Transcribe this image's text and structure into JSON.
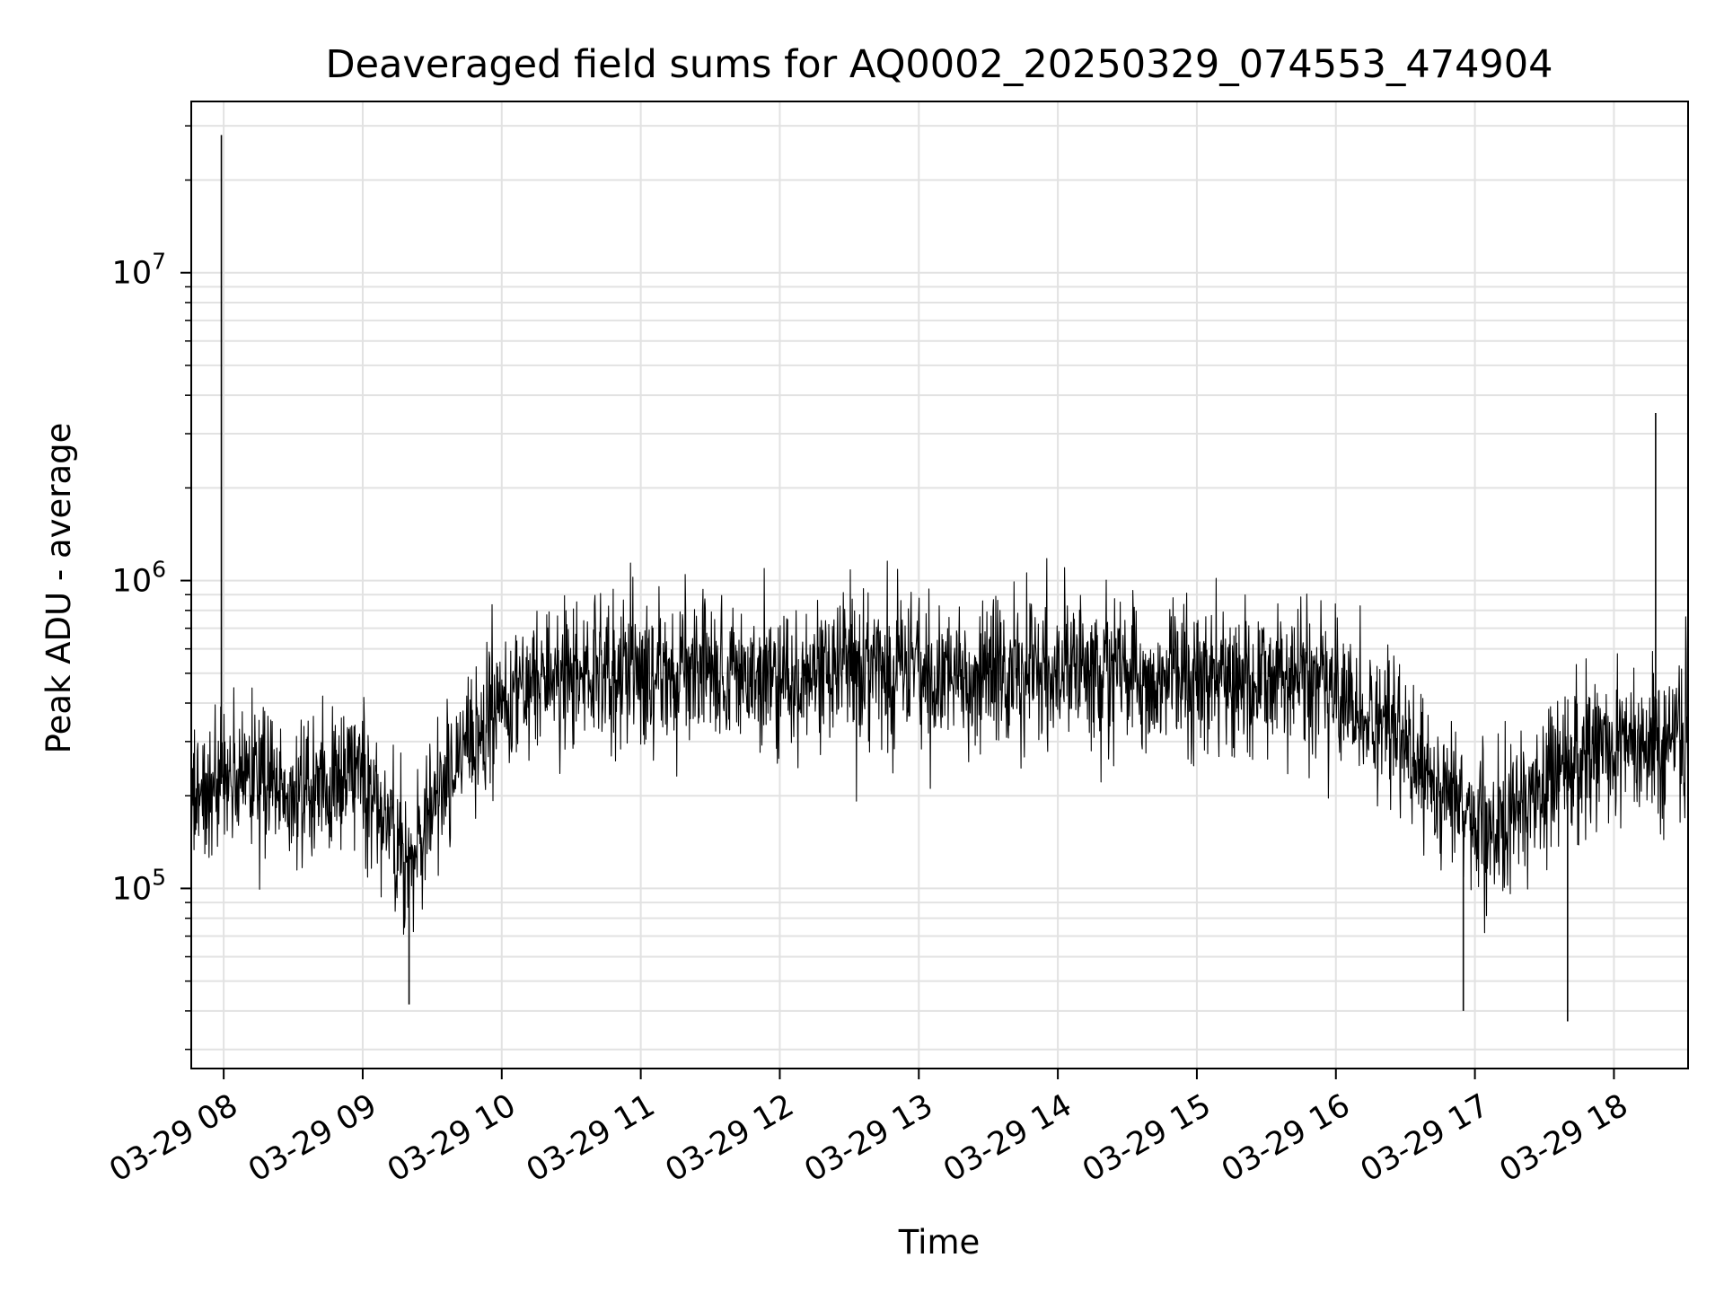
{
  "chart_data": {
    "type": "line",
    "title": "Deaveraged field sums for AQ0002_20250329_074553_474904",
    "xlabel": "Time",
    "ylabel": "Peak ADU - average",
    "y_scale": "log",
    "ylim": [
      26000,
      36000000
    ],
    "xlim": [
      "2025-03-29 07:46",
      "2025-03-29 18:32"
    ],
    "x_tick_labels": [
      "03-29 08",
      "03-29 09",
      "03-29 10",
      "03-29 11",
      "03-29 12",
      "03-29 13",
      "03-29 14",
      "03-29 15",
      "03-29 16",
      "03-29 17",
      "03-29 18"
    ],
    "x_ticks": [
      "2025-03-29 08:00",
      "2025-03-29 09:00",
      "2025-03-29 10:00",
      "2025-03-29 11:00",
      "2025-03-29 12:00",
      "2025-03-29 13:00",
      "2025-03-29 14:00",
      "2025-03-29 15:00",
      "2025-03-29 16:00",
      "2025-03-29 17:00",
      "2025-03-29 18:00"
    ],
    "y_tick_labels": [
      {
        "base": "10",
        "exp": "5",
        "value": 100000
      },
      {
        "base": "10",
        "exp": "6",
        "value": 1000000
      },
      {
        "base": "10",
        "exp": "7",
        "value": 10000000
      }
    ],
    "grid": true,
    "line_color": "#000000",
    "series": [
      {
        "name": "",
        "x": [
          "2025-03-29 07:46",
          "2025-03-29 08:00",
          "2025-03-29 08:15",
          "2025-03-29 08:30",
          "2025-03-29 08:45",
          "2025-03-29 09:00",
          "2025-03-29 09:10",
          "2025-03-29 09:20",
          "2025-03-29 09:30",
          "2025-03-29 09:45",
          "2025-03-29 10:00",
          "2025-03-29 10:30",
          "2025-03-29 11:00",
          "2025-03-29 11:30",
          "2025-03-29 12:00",
          "2025-03-29 12:30",
          "2025-03-29 13:00",
          "2025-03-29 13:30",
          "2025-03-29 14:00",
          "2025-03-29 14:30",
          "2025-03-29 15:00",
          "2025-03-29 15:30",
          "2025-03-29 16:00",
          "2025-03-29 16:20",
          "2025-03-29 16:40",
          "2025-03-29 17:00",
          "2025-03-29 17:10",
          "2025-03-29 17:20",
          "2025-03-29 17:40",
          "2025-03-29 18:00",
          "2025-03-29 18:15",
          "2025-03-29 18:32"
        ],
        "y": [
          200000,
          220000,
          230000,
          200000,
          210000,
          230000,
          160000,
          120000,
          180000,
          280000,
          430000,
          500000,
          490000,
          500000,
          470000,
          510000,
          500000,
          500000,
          520000,
          480000,
          500000,
          490000,
          440000,
          350000,
          250000,
          160000,
          150000,
          180000,
          260000,
          290000,
          300000,
          310000
        ]
      }
    ],
    "spikes": [
      {
        "x": "2025-03-29 07:59",
        "y": 28000000
      },
      {
        "x": "2025-03-29 18:18",
        "y": 3500000
      }
    ],
    "dips": [
      {
        "x": "2025-03-29 09:20",
        "y": 42000
      },
      {
        "x": "2025-03-29 16:55",
        "y": 40000
      },
      {
        "x": "2025-03-29 17:40",
        "y": 37000
      }
    ]
  }
}
